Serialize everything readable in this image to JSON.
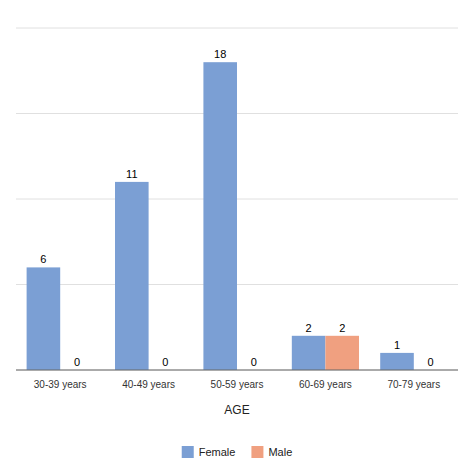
{
  "chart_data": {
    "type": "bar",
    "categories": [
      "30-39 years",
      "40-49 years",
      "50-59 years",
      "60-69 years",
      "70-79 years"
    ],
    "series": [
      {
        "name": "Female",
        "color": "#7b9fd4",
        "values": [
          6,
          11,
          18,
          2,
          1
        ]
      },
      {
        "name": "Male",
        "color": "#f0a080",
        "values": [
          0,
          0,
          0,
          2,
          0
        ]
      }
    ],
    "x_label": "AGE",
    "ylim": [
      0,
      20
    ],
    "yticks": [
      0,
      5,
      10,
      15,
      20
    ],
    "grid": true,
    "data_labels": true,
    "tick_labels": "x",
    "legend": "bottom"
  }
}
